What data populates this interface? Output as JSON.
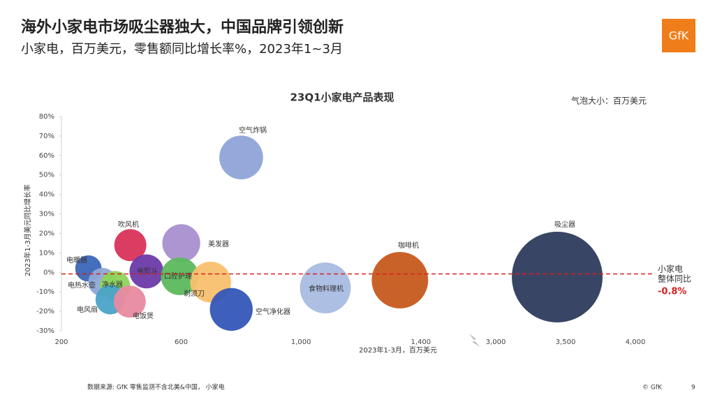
{
  "header": {
    "title": "海外小家电市场吸尘器独大，中国品牌引领创新",
    "subtitle": "小家电，百万美元，零售额同比增长率%，2023年1~3月",
    "logo": "GfK"
  },
  "chart_data": {
    "type": "bubble",
    "title": "23Q1小家电产品表现",
    "size_note": "气泡大小：百万美元",
    "x_label": "2023年1-3月，百万美元",
    "y_label": "2023年1-3月美元同比增长率",
    "categories": [
      "空气炸锅",
      "吹风机",
      "美发器",
      "电暖器",
      "电熨斗",
      "口腔护理",
      "剃须刀",
      "电热水壶",
      "净水器",
      "电风扇",
      "电饭煲",
      "空气净化器",
      "食物料理机",
      "咖啡机",
      "吸尘器"
    ],
    "x": [
      800,
      430,
      600,
      290,
      484,
      595,
      698,
      337,
      379,
      363,
      428,
      767,
      1081,
      1330,
      3440
    ],
    "y": [
      59,
      14,
      15,
      2,
      0.5,
      -2,
      -5,
      -5,
      -7,
      -14,
      -15,
      -19,
      -8,
      -4,
      -2.4
    ],
    "colors": [
      "#8ea4d8",
      "#d9335a",
      "#a98fd0",
      "#3b66b8",
      "#6c3aa8",
      "#5cb85c",
      "#f9c06e",
      "#8fa8d6",
      "#8dd45a",
      "#4aa3c8",
      "#e88aa0",
      "#3556b8",
      "#a9bce2",
      "#c65a1e",
      "#2e3b5c"
    ],
    "size_is_x": true,
    "xlim": [
      200,
      4100
    ],
    "xbreak": [
      1580,
      2900
    ],
    "xticks": [
      200,
      600,
      {
        "value": 1000,
        "label": "1,000"
      },
      {
        "value": 1400,
        "label": "1,400"
      },
      {
        "value": 3000,
        "label": "3,000"
      },
      {
        "value": 3500,
        "label": "3,500"
      },
      {
        "value": 4000,
        "label": "4,000"
      }
    ],
    "ylim": [
      -30,
      80
    ],
    "yticks": [
      {
        "value": 80,
        "label": "80%"
      },
      {
        "value": 70,
        "label": "70%"
      },
      {
        "value": 60,
        "label": "60%"
      },
      {
        "value": 50,
        "label": "50%"
      },
      {
        "value": 40,
        "label": "40%"
      },
      {
        "value": 30,
        "label": "30%"
      },
      {
        "value": 20,
        "label": "20%"
      },
      {
        "value": 10,
        "label": "10%"
      },
      {
        "value": 0,
        "label": "0%"
      },
      {
        "value": -10,
        "label": "-10%"
      },
      {
        "value": -20,
        "label": "-20%"
      },
      {
        "value": -30,
        "label": "-30%"
      }
    ],
    "reference_line": {
      "value": -0.8,
      "label": "-0.8%",
      "text": [
        "小家电",
        "整体同比"
      ],
      "color": "#d62020"
    }
  },
  "footer": {
    "source": "数据来源: GfK 零售监测不含北美&中国， 小家电",
    "copyright": "© GfK",
    "page": "9"
  }
}
